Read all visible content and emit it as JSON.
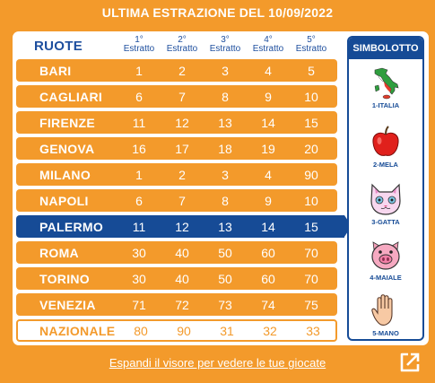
{
  "title": "ULTIMA ESTRAZIONE DEL 10/09/2022",
  "table": {
    "ruote_label": "RUOTE",
    "columns": [
      {
        "ordinal": "1°",
        "label": "Estratto"
      },
      {
        "ordinal": "2°",
        "label": "Estratto"
      },
      {
        "ordinal": "3°",
        "label": "Estratto"
      },
      {
        "ordinal": "4°",
        "label": "Estratto"
      },
      {
        "ordinal": "5°",
        "label": "Estratto"
      }
    ],
    "rows": [
      {
        "name": "BARI",
        "numbers": [
          "1",
          "2",
          "3",
          "4",
          "5"
        ]
      },
      {
        "name": "CAGLIARI",
        "numbers": [
          "6",
          "7",
          "8",
          "9",
          "10"
        ]
      },
      {
        "name": "FIRENZE",
        "numbers": [
          "11",
          "12",
          "13",
          "14",
          "15"
        ]
      },
      {
        "name": "GENOVA",
        "numbers": [
          "16",
          "17",
          "18",
          "19",
          "20"
        ]
      },
      {
        "name": "MILANO",
        "numbers": [
          "1",
          "2",
          "3",
          "4",
          "90"
        ]
      },
      {
        "name": "NAPOLI",
        "numbers": [
          "6",
          "7",
          "8",
          "9",
          "10"
        ]
      },
      {
        "name": "PALERMO",
        "numbers": [
          "11",
          "12",
          "13",
          "14",
          "15"
        ]
      },
      {
        "name": "ROMA",
        "numbers": [
          "30",
          "40",
          "50",
          "60",
          "70"
        ]
      },
      {
        "name": "TORINO",
        "numbers": [
          "30",
          "40",
          "50",
          "60",
          "70"
        ]
      },
      {
        "name": "VENEZIA",
        "numbers": [
          "71",
          "72",
          "73",
          "74",
          "75"
        ]
      },
      {
        "name": "NAZIONALE",
        "numbers": [
          "80",
          "90",
          "31",
          "32",
          "33"
        ]
      }
    ],
    "selected_row": "PALERMO"
  },
  "simbolotto": {
    "title": "SIMBOLOTTO",
    "items": [
      {
        "label": "1-ITALIA",
        "icon": "italy-map-icon"
      },
      {
        "label": "2-MELA",
        "icon": "apple-icon"
      },
      {
        "label": "3-GATTA",
        "icon": "cat-icon"
      },
      {
        "label": "4-MAIALE",
        "icon": "pig-icon"
      },
      {
        "label": "5-MANO",
        "icon": "hand-icon"
      }
    ]
  },
  "footer": {
    "link_text": "Espandi il visore per vedere le tue giocate",
    "expand_icon": "expand-external-icon"
  },
  "colors": {
    "orange": "#f39a2b",
    "blue": "#164b96",
    "white": "#ffffff"
  }
}
